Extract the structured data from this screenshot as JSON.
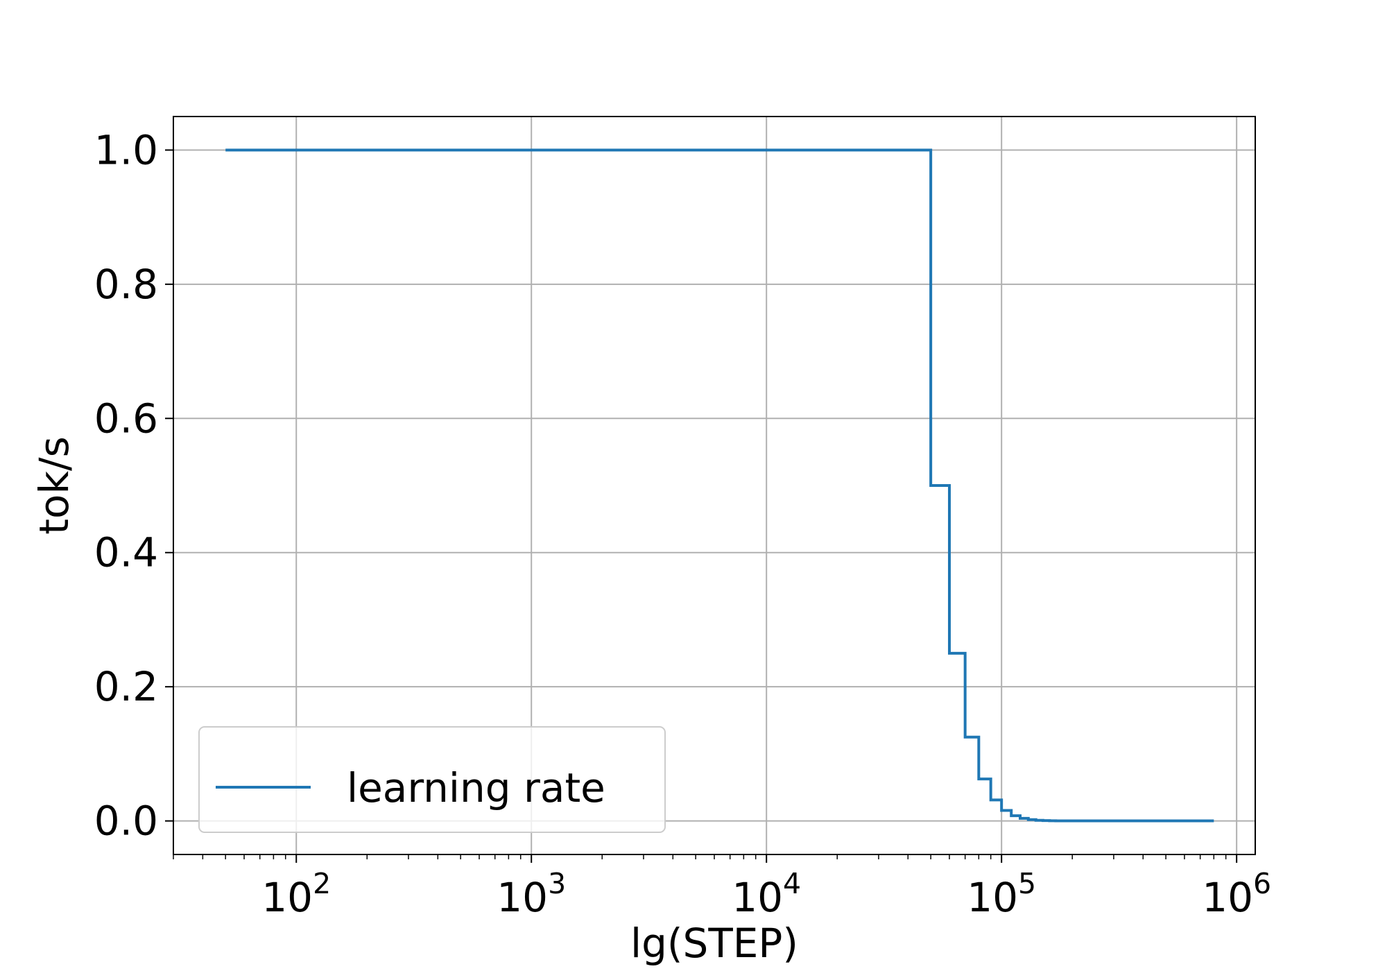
{
  "chart_data": {
    "type": "line",
    "xlabel": "lg(STEP)",
    "ylabel": "tok/s",
    "xscale": "log",
    "xlim": [
      30,
      1200000
    ],
    "ylim": [
      -0.05,
      1.05
    ],
    "grid": true,
    "legend_position": "lower-left",
    "x_ticks": [
      {
        "value": 100,
        "base": "10",
        "exp": "2"
      },
      {
        "value": 1000,
        "base": "10",
        "exp": "3"
      },
      {
        "value": 10000,
        "base": "10",
        "exp": "4"
      },
      {
        "value": 100000,
        "base": "10",
        "exp": "5"
      },
      {
        "value": 1000000,
        "base": "10",
        "exp": "6"
      }
    ],
    "y_ticks": [
      {
        "value": 0.0,
        "label": "0.0"
      },
      {
        "value": 0.2,
        "label": "0.2"
      },
      {
        "value": 0.4,
        "label": "0.4"
      },
      {
        "value": 0.6,
        "label": "0.6"
      },
      {
        "value": 0.8,
        "label": "0.8"
      },
      {
        "value": 1.0,
        "label": "1.0"
      }
    ],
    "series": [
      {
        "name": "learning rate",
        "color": "#1f77b4",
        "drawstyle": "steps-post",
        "points": [
          [
            50,
            1.0
          ],
          [
            50000,
            0.5
          ],
          [
            60000,
            0.25
          ],
          [
            70000,
            0.125
          ],
          [
            80000,
            0.0625
          ],
          [
            90000,
            0.03125
          ],
          [
            100000,
            0.015625
          ],
          [
            110000,
            0.0078125
          ],
          [
            120000,
            0.00390625
          ],
          [
            130000,
            0.001953125
          ],
          [
            140000,
            0.0009765625
          ],
          [
            150000,
            0.00048828125
          ],
          [
            160000,
            0.000244140625
          ],
          [
            170000,
            0.0001220703125
          ],
          [
            800000,
            0.0001220703125
          ]
        ]
      }
    ]
  }
}
